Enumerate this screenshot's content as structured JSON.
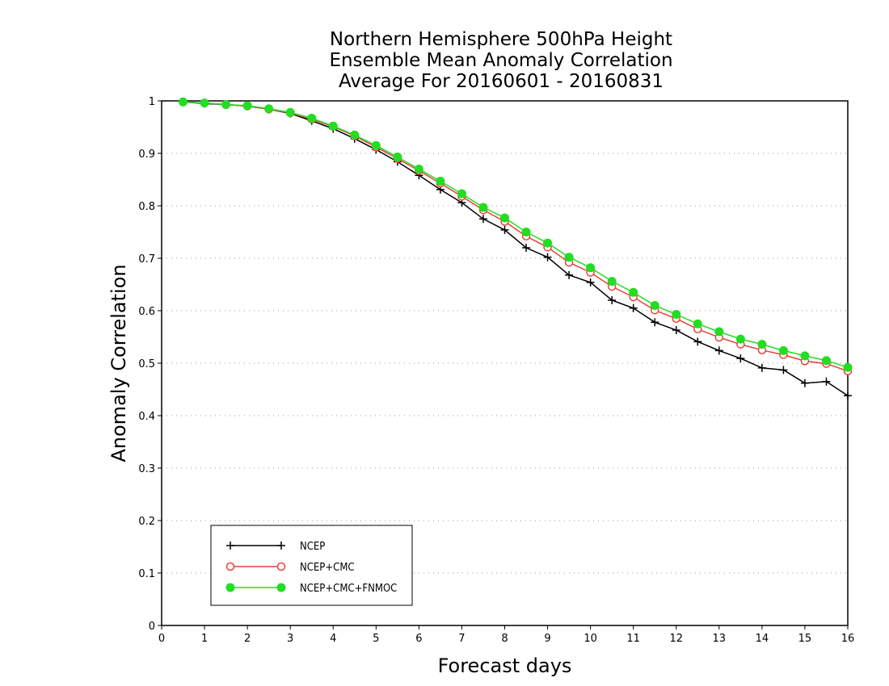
{
  "chart_data": {
    "type": "line",
    "title_lines": [
      "Northern Hemisphere 500hPa Height",
      "Ensemble Mean Anomaly Correlation",
      "Average For 20160601 - 20160831"
    ],
    "xlabel": "Forecast days",
    "ylabel": "Anomaly Correlation",
    "xlim": [
      0,
      16
    ],
    "ylim": [
      0,
      1
    ],
    "x_ticks": [
      "0",
      "1",
      "2",
      "3",
      "4",
      "5",
      "6",
      "7",
      "8",
      "9",
      "10",
      "11",
      "12",
      "13",
      "14",
      "15",
      "16"
    ],
    "y_ticks": [
      "0",
      "0.1",
      "0.2",
      "0.3",
      "0.4",
      "0.5",
      "0.6",
      "0.7",
      "0.8",
      "0.9",
      "1"
    ],
    "grid": true,
    "legend_position": "bottom-left",
    "x": [
      0.5,
      1,
      1.5,
      2,
      2.5,
      3,
      3.5,
      4,
      4.5,
      5,
      5.5,
      6,
      6.5,
      7,
      7.5,
      8,
      8.5,
      9,
      9.5,
      10,
      10.5,
      11,
      11.5,
      12,
      12.5,
      13,
      13.5,
      14,
      14.5,
      15,
      15.5,
      16
    ],
    "series": [
      {
        "name": "NCEP",
        "color": "#000000",
        "marker": "plus",
        "values": [
          0.998,
          0.995,
          0.993,
          0.99,
          0.984,
          0.976,
          0.962,
          0.947,
          0.928,
          0.907,
          0.884,
          0.858,
          0.831,
          0.806,
          0.775,
          0.754,
          0.72,
          0.702,
          0.668,
          0.654,
          0.62,
          0.605,
          0.578,
          0.563,
          0.541,
          0.524,
          0.509,
          0.491,
          0.487,
          0.462,
          0.465,
          0.438
        ]
      },
      {
        "name": "NCEP+CMC",
        "color": "#e8413a",
        "marker": "open-circle",
        "values": [
          0.998,
          0.996,
          0.993,
          0.99,
          0.984,
          0.977,
          0.965,
          0.951,
          0.933,
          0.912,
          0.89,
          0.867,
          0.843,
          0.818,
          0.792,
          0.77,
          0.742,
          0.721,
          0.692,
          0.673,
          0.646,
          0.626,
          0.601,
          0.585,
          0.565,
          0.549,
          0.536,
          0.525,
          0.516,
          0.504,
          0.499,
          0.485
        ]
      },
      {
        "name": "NCEP+CMC+FNMOC",
        "color": "#22dd22",
        "marker": "filled-circle",
        "values": [
          0.998,
          0.996,
          0.993,
          0.991,
          0.985,
          0.978,
          0.967,
          0.952,
          0.935,
          0.915,
          0.893,
          0.87,
          0.847,
          0.823,
          0.797,
          0.777,
          0.75,
          0.729,
          0.702,
          0.682,
          0.656,
          0.635,
          0.61,
          0.593,
          0.575,
          0.56,
          0.546,
          0.536,
          0.524,
          0.514,
          0.505,
          0.492
        ]
      }
    ]
  }
}
